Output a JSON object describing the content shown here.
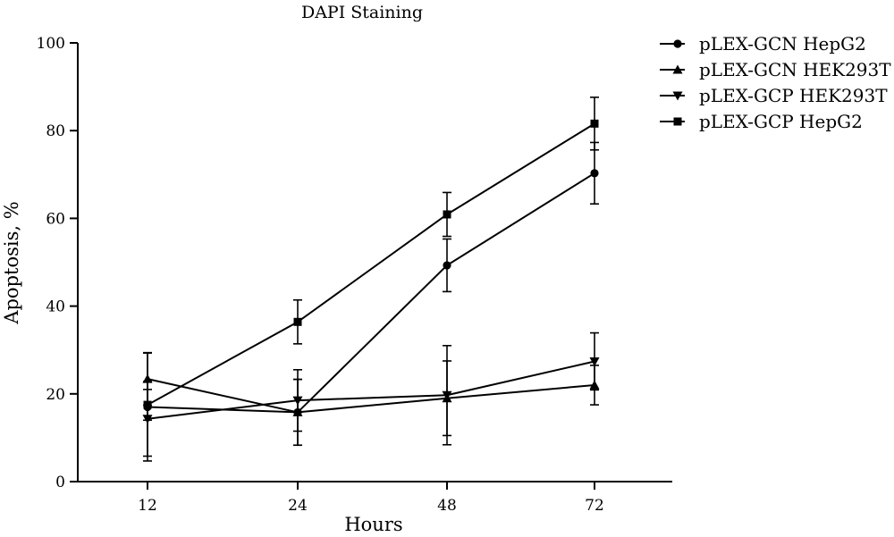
{
  "chart_data": {
    "type": "line",
    "title": "DAPI Staining",
    "xlabel": "Hours",
    "ylabel": "Apoptosis, %",
    "categories": [
      "12",
      "24",
      "48",
      "72"
    ],
    "ylim": [
      0,
      100
    ],
    "yticks": [
      0,
      20,
      40,
      60,
      80,
      100
    ],
    "grid": false,
    "legend_position": "top-right",
    "series": [
      {
        "name": "pLEX-GCN HepG2",
        "marker": "circle",
        "values": [
          17,
          15.8,
          49.3,
          70.3
        ],
        "error": [
          12.3,
          7.5,
          6,
          7
        ]
      },
      {
        "name": "pLEX-GCN HEK293T",
        "marker": "triangle-up",
        "values": [
          23.4,
          15.8,
          19,
          22
        ],
        "error": [
          6,
          7.5,
          8.5,
          4.5
        ]
      },
      {
        "name": "pLEX-GCP HEK293T",
        "marker": "triangle-down",
        "values": [
          14.3,
          18.5,
          19.7,
          27.4
        ],
        "error": [
          8.5,
          7,
          11.3,
          6.5
        ]
      },
      {
        "name": "pLEX-GCP HepG2",
        "marker": "square",
        "values": [
          17.5,
          36.4,
          60.9,
          81.6
        ],
        "error": [
          3.5,
          5,
          5,
          6
        ]
      }
    ]
  }
}
